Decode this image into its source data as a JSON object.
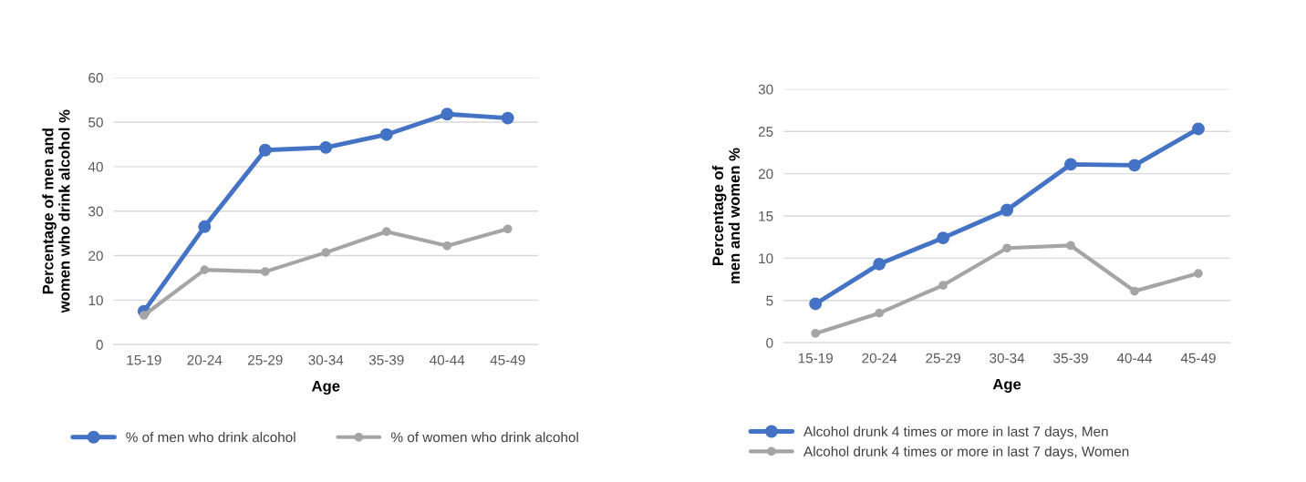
{
  "chart_data": [
    {
      "type": "line",
      "xlabel": "Age",
      "ylabel": "Percentage of men and women who drink alcohol %",
      "categories": [
        "15-19",
        "20-24",
        "25-29",
        "30-34",
        "35-39",
        "40-44",
        "45-49"
      ],
      "ylim": [
        0,
        60
      ],
      "yticks": [
        0,
        10,
        20,
        30,
        40,
        50,
        60
      ],
      "grid": "y",
      "legend": "bottom",
      "marker": "circle",
      "line_style": "solid",
      "series": [
        {
          "name": "% of men who drink alcohol",
          "color": "#4472c4",
          "values": [
            7.5,
            26.5,
            43.7,
            44.3,
            47.2,
            51.8,
            50.9
          ]
        },
        {
          "name": "% of women who drink alcohol",
          "color": "#a5a5a5",
          "values": [
            6.6,
            16.8,
            16.4,
            20.7,
            25.4,
            22.2,
            26.0
          ]
        }
      ]
    },
    {
      "type": "line",
      "xlabel": "Age",
      "ylabel": "Percentage of men and women %",
      "categories": [
        "15-19",
        "20-24",
        "25-29",
        "30-34",
        "35-39",
        "40-44",
        "45-49"
      ],
      "ylim": [
        0,
        30
      ],
      "yticks": [
        0,
        5,
        10,
        15,
        20,
        25,
        30
      ],
      "grid": "y",
      "legend": "bottom",
      "marker": "circle",
      "line_style": "solid",
      "series": [
        {
          "name": "Alcohol drunk 4 times or more in last 7 days, Men",
          "color": "#4472c4",
          "values": [
            4.6,
            9.3,
            12.4,
            15.7,
            21.1,
            21.0,
            25.3
          ]
        },
        {
          "name": "Alcohol drunk 4 times or more in last 7 days, Women",
          "color": "#a5a5a5",
          "values": [
            1.1,
            3.5,
            6.8,
            11.2,
            11.5,
            6.1,
            8.2
          ]
        }
      ]
    }
  ]
}
